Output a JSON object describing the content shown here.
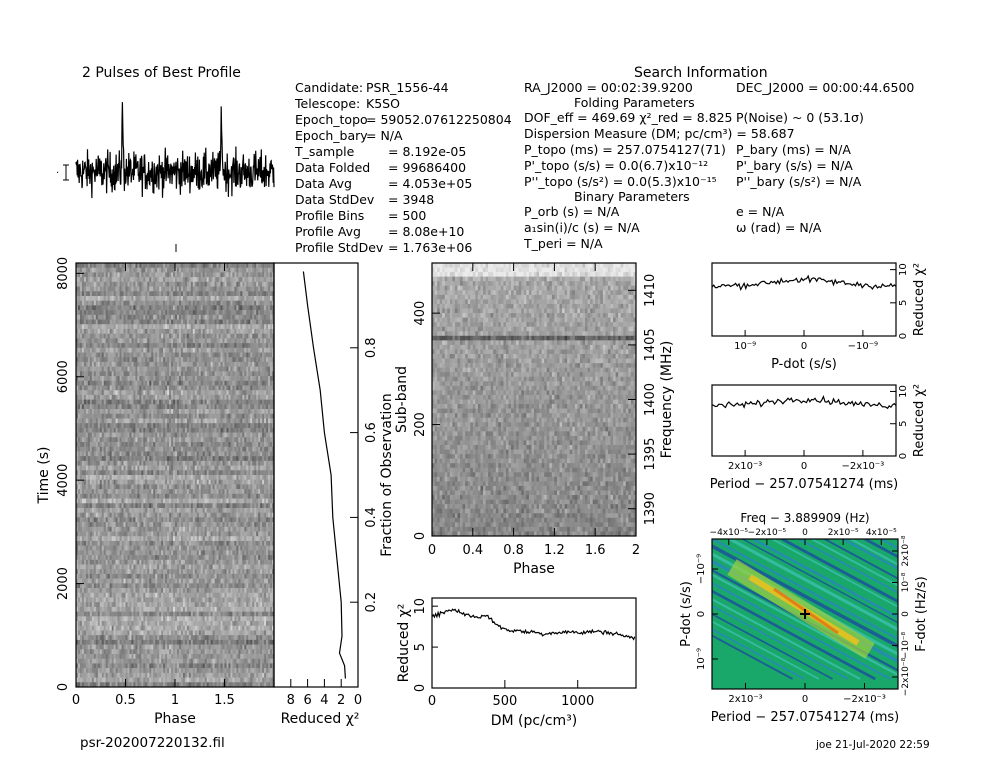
{
  "title_profile": "2 Pulses of Best Profile",
  "title_search": "Search Information",
  "title_folding": "Folding Parameters",
  "title_binary": "Binary Parameters",
  "filename": "psr-202007220132.fil",
  "stamp": "joe 21-Jul-2020 22:59",
  "info_left": [
    {
      "k": "Candidate:",
      "v": "PSR_1556-44"
    },
    {
      "k": "Telescope:",
      "v": "K5SO"
    },
    {
      "k": "Epoch_topo",
      "v": "= 59052.07612250804"
    },
    {
      "k": "Epoch_bary",
      "v": "= N/A"
    },
    {
      "k": "T_sample",
      "v": "=   8.192e-05"
    },
    {
      "k": "Data Folded",
      "v": "=   99686400"
    },
    {
      "k": "Data Avg",
      "v": "=   4.053e+05"
    },
    {
      "k": "Data StdDev",
      "v": "=   3948"
    },
    {
      "k": "Profile Bins",
      "v": "=   500"
    },
    {
      "k": "Profile Avg",
      "v": "=   8.08e+10"
    },
    {
      "k": "Profile StdDev",
      "v": "=   1.763e+06"
    }
  ],
  "info_ra": "RA_J2000 = 00:02:39.9200",
  "info_dec": "DEC_J2000 = 00:00:44.6500",
  "info_dof": "DOF_eff = 469.69  χ²_red = 8.825",
  "info_pnoise": "P(Noise) ~ 0   (53.1σ)",
  "info_dm": "Dispersion Measure (DM; pc/cm³) = 58.687",
  "info_ptopo": "P_topo (ms) =   257.0754127(71)",
  "info_pbary": "P_bary (ms) = N/A",
  "info_pdtopo": "P'_topo (s/s) = 0.0(6.7)x10⁻¹²",
  "info_pdbary": "P'_bary (s/s) = N/A",
  "info_pddtopo": "P''_topo (s/s²) = 0.0(5.3)x10⁻¹⁵",
  "info_pddbary": "P''_bary (s/s²) = N/A",
  "info_porb": "P_orb (s) = N/A",
  "info_e": "e = N/A",
  "info_asini": "a₁sin(i)/c (s) = N/A",
  "info_omega": "ω (rad) = N/A",
  "info_tperi": "T_peri = N/A",
  "colors": {
    "heat_bg": "#1aa86a",
    "heat_hot": "#e8c21e",
    "heat_cold": "#1b3fa8"
  },
  "chart_data": [
    {
      "type": "line",
      "role": "profile",
      "title": "2 Pulses of Best Profile",
      "x_range": [
        0,
        2
      ],
      "peaks_at_phase": [
        0.47,
        1.47
      ],
      "grid": false
    },
    {
      "type": "heatmap",
      "role": "time-phase",
      "xlabel": "Phase",
      "ylabel": "Time (s)",
      "xticks": [
        "0",
        "0.5",
        "1",
        "1.5"
      ],
      "yticks": [
        "0",
        "2000",
        "4000",
        "6000",
        "8000"
      ],
      "x_range": [
        0,
        2
      ],
      "y_range": [
        0,
        8200
      ],
      "right_axis_label": "Fraction of Observation",
      "right_ticks": [
        "0.2",
        "0.4",
        "0.6",
        "0.8"
      ]
    },
    {
      "type": "line",
      "role": "chi2-vs-time",
      "xlabel": "Reduced χ²",
      "xticks": [
        "8",
        "6",
        "4",
        "2",
        "0"
      ],
      "x_range": [
        10,
        0
      ],
      "curve": [
        [
          0.02,
          1.5
        ],
        [
          0.05,
          1.6
        ],
        [
          0.08,
          2.2
        ],
        [
          0.12,
          1.9
        ],
        [
          0.2,
          2.0
        ],
        [
          0.3,
          2.5
        ],
        [
          0.4,
          3.0
        ],
        [
          0.5,
          3.2
        ],
        [
          0.6,
          4.0
        ],
        [
          0.7,
          4.5
        ],
        [
          0.8,
          5.3
        ],
        [
          0.9,
          6.0
        ],
        [
          0.98,
          6.5
        ]
      ]
    },
    {
      "type": "heatmap",
      "role": "subband-phase",
      "xlabel": "Phase",
      "ylabel": "Sub-band",
      "right_axis_label": "Frequency (MHz)",
      "xticks": [
        "0",
        "0.4",
        "0.8",
        "1.2",
        "1.6",
        "2"
      ],
      "yticks": [
        "0",
        "200",
        "400"
      ],
      "y_range": [
        0,
        490
      ],
      "right_ticks": [
        "1390",
        "1395",
        "1400",
        "1405",
        "1410"
      ],
      "right_range": [
        1387.5,
        1412.5
      ]
    },
    {
      "type": "line",
      "role": "chi2-vs-dm",
      "xlabel": "DM (pc/cm³)",
      "ylabel": "Reduced χ²",
      "xticks": [
        "0",
        "500",
        "1000"
      ],
      "yticks": [
        "0",
        "5",
        "10"
      ],
      "x_range": [
        0,
        1400
      ],
      "y_range": [
        0,
        11
      ],
      "x": [
        0,
        50,
        100,
        150,
        200,
        250,
        300,
        350,
        400,
        450,
        500,
        550,
        600,
        650,
        700,
        750,
        800,
        850,
        900,
        950,
        1000,
        1050,
        1100,
        1150,
        1200,
        1250,
        1300,
        1350,
        1400
      ],
      "y": [
        8.8,
        9.0,
        9.4,
        9.6,
        9.2,
        8.9,
        8.7,
        8.8,
        8.6,
        7.6,
        7.2,
        7.0,
        7.0,
        6.8,
        6.9,
        6.6,
        6.7,
        6.8,
        6.8,
        6.9,
        6.7,
        6.8,
        6.9,
        6.9,
        6.8,
        6.7,
        6.5,
        6.2,
        6.0
      ]
    },
    {
      "type": "line",
      "role": "chi2-vs-pdot",
      "xlabel": "P-dot (s/s)",
      "ylabel": "Reduced χ²",
      "xticks": [
        "10⁻⁹",
        "0",
        "−10⁻⁹"
      ],
      "yticks": [
        "0",
        "5",
        "10"
      ],
      "y_range": [
        0,
        11
      ],
      "level": 7.5
    },
    {
      "type": "line",
      "role": "chi2-vs-period",
      "xlabel": "Period − 257.07541274 (ms)",
      "ylabel": "Reduced χ²",
      "xticks": [
        "2x10⁻³",
        "0",
        "−2x10⁻³"
      ],
      "yticks": [
        "0",
        "5",
        "10"
      ],
      "y_range": [
        0,
        11
      ],
      "level": 7.8
    },
    {
      "type": "heatmap",
      "role": "period-pdot",
      "title": "Freq − 3.889909 (Hz)",
      "xlabel": "Period − 257.07541274 (ms)",
      "ylabel": "P-dot (s/s)",
      "right_axis_label": "F-dot (Hz/s)",
      "xticks": [
        "2x10⁻³",
        "0",
        "−2x10⁻³"
      ],
      "top_ticks": [
        "−4x10⁻⁵",
        "−2x10⁻⁵",
        "0",
        "2x10⁻⁵",
        "4x10⁻⁵"
      ],
      "yticks": [
        "10⁻⁹",
        "0",
        "−10⁻⁹"
      ],
      "right_ticks": [
        "−2x10⁻⁸",
        "−10⁻⁸",
        "0",
        "10⁻⁸",
        "2x10⁻⁸"
      ]
    }
  ]
}
